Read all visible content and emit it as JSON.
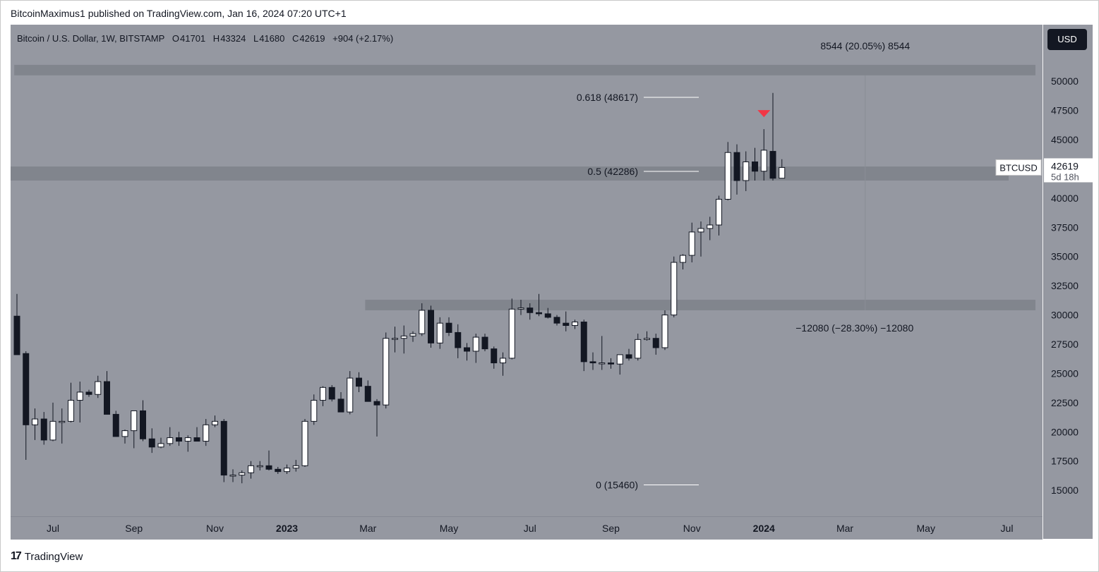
{
  "header": {
    "published_text": "BitcoinMaximus1 published on TradingView.com, Jan 16, 2024 07:20 UTC+1"
  },
  "legend": {
    "symbol": "Bitcoin / U.S. Dollar, 1W, BITSTAMP",
    "open_label": "O",
    "open": "41701",
    "high_label": "H",
    "high": "43324",
    "low_label": "L",
    "low": "41680",
    "close_label": "C",
    "close": "42619",
    "change": "+904 (+2.17%)"
  },
  "currency_button": "USD",
  "price_label": {
    "ticker": "BTCUSD",
    "price": "42619",
    "countdown": "5d 18h"
  },
  "branding": {
    "logo_mark": "17",
    "name": "TradingView"
  },
  "colors": {
    "background": "#9598a1",
    "up_body": "#ffffff",
    "down_body": "#131722",
    "wick": "#131722",
    "zone": "#7e8189",
    "fib_line": "#ffffff",
    "marker": "#f23645"
  },
  "chart_data": {
    "type": "candlestick",
    "title": "Bitcoin / U.S. Dollar, 1W, BITSTAMP",
    "timeframe": "1W",
    "ylim": [
      13500,
      52000
    ],
    "y_ticks": [
      15000,
      17500,
      20000,
      22500,
      25000,
      27500,
      30000,
      32500,
      35000,
      37500,
      40000,
      42500,
      45000,
      47500,
      50000
    ],
    "x_ticks": [
      {
        "label": "Jul",
        "index": 4
      },
      {
        "label": "Sep",
        "index": 13
      },
      {
        "label": "Nov",
        "index": 22
      },
      {
        "label": "2023",
        "index": 30
      },
      {
        "label": "Mar",
        "index": 39
      },
      {
        "label": "May",
        "index": 48
      },
      {
        "label": "Jul",
        "index": 57
      },
      {
        "label": "Sep",
        "index": 66
      },
      {
        "label": "Nov",
        "index": 75
      },
      {
        "label": "2024",
        "index": 83
      },
      {
        "label": "Mar",
        "index": 92
      },
      {
        "label": "May",
        "index": 101
      },
      {
        "label": "Jul",
        "index": 110
      }
    ],
    "candles": [
      {
        "o": 29900,
        "h": 31800,
        "l": 26600,
        "c": 26600
      },
      {
        "o": 26700,
        "h": 26900,
        "l": 17600,
        "c": 20600
      },
      {
        "o": 20600,
        "h": 22000,
        "l": 19300,
        "c": 21100
      },
      {
        "o": 21100,
        "h": 21700,
        "l": 18900,
        "c": 19300
      },
      {
        "o": 19300,
        "h": 22500,
        "l": 19200,
        "c": 20900
      },
      {
        "o": 20900,
        "h": 22000,
        "l": 19000,
        "c": 20900
      },
      {
        "o": 20900,
        "h": 24200,
        "l": 20800,
        "c": 22700
      },
      {
        "o": 22700,
        "h": 24300,
        "l": 20800,
        "c": 23400
      },
      {
        "o": 23400,
        "h": 23600,
        "l": 23000,
        "c": 23200
      },
      {
        "o": 23200,
        "h": 24800,
        "l": 22900,
        "c": 24300
      },
      {
        "o": 24300,
        "h": 25200,
        "l": 21500,
        "c": 21500
      },
      {
        "o": 21500,
        "h": 21800,
        "l": 19600,
        "c": 19600
      },
      {
        "o": 19600,
        "h": 20200,
        "l": 19000,
        "c": 20100
      },
      {
        "o": 20100,
        "h": 21800,
        "l": 18600,
        "c": 21800
      },
      {
        "o": 21800,
        "h": 22700,
        "l": 19200,
        "c": 19400
      },
      {
        "o": 19400,
        "h": 20300,
        "l": 18200,
        "c": 18700
      },
      {
        "o": 18700,
        "h": 19500,
        "l": 18600,
        "c": 19000
      },
      {
        "o": 19000,
        "h": 20400,
        "l": 18800,
        "c": 19500
      },
      {
        "o": 19500,
        "h": 20000,
        "l": 18800,
        "c": 19200
      },
      {
        "o": 19200,
        "h": 19700,
        "l": 18300,
        "c": 19500
      },
      {
        "o": 19500,
        "h": 20400,
        "l": 19200,
        "c": 19200
      },
      {
        "o": 19200,
        "h": 21100,
        "l": 18800,
        "c": 20600
      },
      {
        "o": 20600,
        "h": 21400,
        "l": 20400,
        "c": 20900
      },
      {
        "o": 20900,
        "h": 21100,
        "l": 15700,
        "c": 16300
      },
      {
        "o": 16300,
        "h": 16800,
        "l": 15700,
        "c": 16300
      },
      {
        "o": 16300,
        "h": 16700,
        "l": 15600,
        "c": 16500
      },
      {
        "o": 16500,
        "h": 17500,
        "l": 16000,
        "c": 17100
      },
      {
        "o": 17100,
        "h": 17500,
        "l": 16700,
        "c": 17100
      },
      {
        "o": 17100,
        "h": 18400,
        "l": 16700,
        "c": 16800
      },
      {
        "o": 16800,
        "h": 17000,
        "l": 16400,
        "c": 16600
      },
      {
        "o": 16600,
        "h": 17200,
        "l": 16400,
        "c": 16900
      },
      {
        "o": 16900,
        "h": 17600,
        "l": 16600,
        "c": 17100
      },
      {
        "o": 17100,
        "h": 21100,
        "l": 17000,
        "c": 20900
      },
      {
        "o": 20900,
        "h": 23200,
        "l": 20600,
        "c": 22700
      },
      {
        "o": 22700,
        "h": 23900,
        "l": 22200,
        "c": 23800
      },
      {
        "o": 23800,
        "h": 24000,
        "l": 22600,
        "c": 22800
      },
      {
        "o": 22800,
        "h": 23400,
        "l": 21700,
        "c": 21700
      },
      {
        "o": 21700,
        "h": 25200,
        "l": 21500,
        "c": 24600
      },
      {
        "o": 24600,
        "h": 25100,
        "l": 23400,
        "c": 23900
      },
      {
        "o": 23900,
        "h": 24400,
        "l": 22600,
        "c": 22600
      },
      {
        "o": 22600,
        "h": 22800,
        "l": 19600,
        "c": 22300
      },
      {
        "o": 22300,
        "h": 28500,
        "l": 22000,
        "c": 28000
      },
      {
        "o": 28000,
        "h": 29000,
        "l": 26800,
        "c": 28000
      },
      {
        "o": 28000,
        "h": 29100,
        "l": 26700,
        "c": 28200
      },
      {
        "o": 28200,
        "h": 28600,
        "l": 27700,
        "c": 28400
      },
      {
        "o": 28400,
        "h": 31000,
        "l": 28200,
        "c": 30400
      },
      {
        "o": 30400,
        "h": 30800,
        "l": 27200,
        "c": 27600
      },
      {
        "o": 27600,
        "h": 29800,
        "l": 27100,
        "c": 29300
      },
      {
        "o": 29300,
        "h": 29800,
        "l": 28200,
        "c": 28500
      },
      {
        "o": 28500,
        "h": 29200,
        "l": 26300,
        "c": 27200
      },
      {
        "o": 27200,
        "h": 27600,
        "l": 26100,
        "c": 26900
      },
      {
        "o": 26900,
        "h": 28400,
        "l": 25900,
        "c": 28100
      },
      {
        "o": 28100,
        "h": 28400,
        "l": 26900,
        "c": 27100
      },
      {
        "o": 27100,
        "h": 27300,
        "l": 25400,
        "c": 25900
      },
      {
        "o": 25900,
        "h": 26800,
        "l": 24800,
        "c": 26300
      },
      {
        "o": 26300,
        "h": 31400,
        "l": 26200,
        "c": 30500
      },
      {
        "o": 30500,
        "h": 31300,
        "l": 30000,
        "c": 30600
      },
      {
        "o": 30600,
        "h": 31000,
        "l": 29600,
        "c": 30200
      },
      {
        "o": 30200,
        "h": 31800,
        "l": 29900,
        "c": 30100
      },
      {
        "o": 30100,
        "h": 30600,
        "l": 29700,
        "c": 29800
      },
      {
        "o": 29800,
        "h": 30000,
        "l": 29100,
        "c": 29300
      },
      {
        "o": 29300,
        "h": 30300,
        "l": 28600,
        "c": 29100
      },
      {
        "o": 29100,
        "h": 29600,
        "l": 28800,
        "c": 29400
      },
      {
        "o": 29400,
        "h": 29600,
        "l": 25200,
        "c": 26000
      },
      {
        "o": 26000,
        "h": 26800,
        "l": 25300,
        "c": 25900
      },
      {
        "o": 25900,
        "h": 28200,
        "l": 25300,
        "c": 25900
      },
      {
        "o": 25900,
        "h": 26300,
        "l": 25400,
        "c": 25800
      },
      {
        "o": 25800,
        "h": 26600,
        "l": 24900,
        "c": 26600
      },
      {
        "o": 26600,
        "h": 27100,
        "l": 26100,
        "c": 26300
      },
      {
        "o": 26300,
        "h": 28400,
        "l": 26100,
        "c": 27900
      },
      {
        "o": 27900,
        "h": 28600,
        "l": 27800,
        "c": 28000
      },
      {
        "o": 28000,
        "h": 28400,
        "l": 26600,
        "c": 27200
      },
      {
        "o": 27200,
        "h": 30400,
        "l": 27000,
        "c": 30000
      },
      {
        "o": 30000,
        "h": 35000,
        "l": 29800,
        "c": 34500
      },
      {
        "o": 34500,
        "h": 35200,
        "l": 33900,
        "c": 35100
      },
      {
        "o": 35100,
        "h": 37900,
        "l": 34500,
        "c": 37100
      },
      {
        "o": 37100,
        "h": 38000,
        "l": 35000,
        "c": 37400
      },
      {
        "o": 37400,
        "h": 38400,
        "l": 36400,
        "c": 37700
      },
      {
        "o": 37700,
        "h": 40200,
        "l": 36800,
        "c": 39900
      },
      {
        "o": 39900,
        "h": 44800,
        "l": 39800,
        "c": 43900
      },
      {
        "o": 43900,
        "h": 44600,
        "l": 40300,
        "c": 41500
      },
      {
        "o": 41500,
        "h": 44000,
        "l": 40600,
        "c": 43100
      },
      {
        "o": 43100,
        "h": 44300,
        "l": 41500,
        "c": 42300
      },
      {
        "o": 42300,
        "h": 45900,
        "l": 41500,
        "c": 44100
      },
      {
        "o": 44000,
        "h": 49000,
        "l": 41500,
        "c": 41700
      },
      {
        "o": 41701,
        "h": 43324,
        "l": 41680,
        "c": 42619
      }
    ],
    "fibonacci": [
      {
        "label": "0.618 (48617)",
        "value": 48617
      },
      {
        "label": "0.5 (42286)",
        "value": 42286
      },
      {
        "label": "0 (15460)",
        "value": 15460
      }
    ],
    "zones": [
      {
        "from": 50500,
        "to": 51400,
        "start_index": 0
      },
      {
        "from": 41500,
        "to": 42700,
        "start_index": 0
      },
      {
        "from": 30400,
        "to": 31300,
        "start_index": 39
      }
    ],
    "measurements": [
      {
        "text": "8544 (20.05%) 8544"
      },
      {
        "text": "−12080 (−28.30%) −12080"
      }
    ],
    "bearish_marker_index": 83
  }
}
